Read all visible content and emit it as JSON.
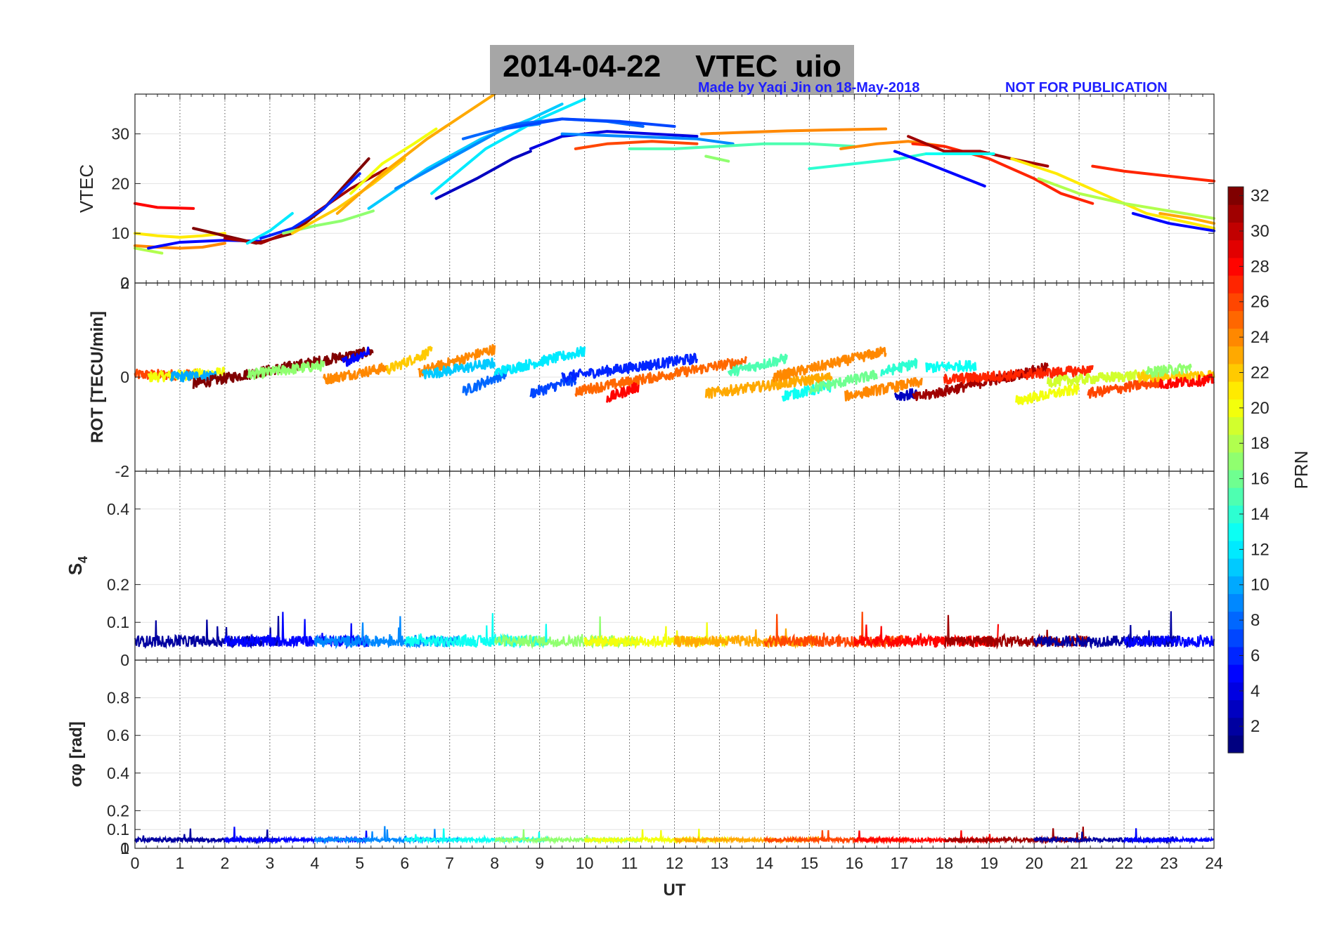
{
  "figure": {
    "title": "2014-04-22    VTEC  uio",
    "credit_left": "Made by Yaqi Jin on 18-May-2018",
    "credit_right": "NOT FOR PUBLICATION",
    "xlabel": "UT",
    "colorbar_label": "PRN"
  },
  "chart_data": {
    "type": "line",
    "x_range": [
      0,
      24
    ],
    "x_ticks": [
      0,
      1,
      2,
      3,
      4,
      5,
      6,
      7,
      8,
      9,
      10,
      11,
      12,
      13,
      14,
      15,
      16,
      17,
      18,
      19,
      20,
      21,
      22,
      23,
      24
    ],
    "xlabel": "UT",
    "colorbar": {
      "label": "PRN",
      "range": [
        1,
        32
      ],
      "ticks": [
        2,
        4,
        6,
        8,
        10,
        12,
        14,
        16,
        18,
        20,
        22,
        24,
        26,
        28,
        30,
        32
      ],
      "colormap": "jet"
    },
    "panels": [
      {
        "name": "vtec",
        "ylabel": "VTEC",
        "ylim": [
          0,
          38
        ],
        "yticks": [
          10,
          20,
          30
        ],
        "extra_tick_labels": [
          "0"
        ],
        "series": [
          {
            "prn": 24,
            "x": [
              0,
              0.5,
              1,
              1.5,
              2
            ],
            "y": [
              7.5,
              7.2,
              7.0,
              7.2,
              8.0
            ]
          },
          {
            "prn": 28,
            "x": [
              0,
              0.5,
              1.3
            ],
            "y": [
              16,
              15.2,
              15
            ]
          },
          {
            "prn": 18,
            "x": [
              0,
              0.6
            ],
            "y": [
              7,
              6
            ]
          },
          {
            "prn": 21,
            "x": [
              0,
              0.5,
              1,
              1.5,
              2
            ],
            "y": [
              10,
              9.5,
              9.2,
              9.5,
              10
            ]
          },
          {
            "prn": 5,
            "x": [
              0.3,
              1,
              2,
              2.8
            ],
            "y": [
              7,
              8.2,
              8.6,
              8.4
            ]
          },
          {
            "prn": 32,
            "x": [
              1.3,
              2,
              2.7,
              3.5,
              4.2,
              5.2
            ],
            "y": [
              11,
              9.5,
              8,
              10,
              15,
              25
            ]
          },
          {
            "prn": 31,
            "x": [
              2,
              2.8,
              3.5,
              4,
              4.8,
              5.6
            ],
            "y": [
              9,
              8,
              10.5,
              14,
              19,
              23
            ]
          },
          {
            "prn": 12,
            "x": [
              2.5,
              3.0,
              3.5
            ],
            "y": [
              8,
              10.5,
              14
            ]
          },
          {
            "prn": 6,
            "x": [
              2.8,
              3.5,
              4.2,
              5.0
            ],
            "y": [
              9,
              11,
              15,
              22
            ]
          },
          {
            "prn": 17,
            "x": [
              3.3,
              4,
              4.6,
              5.3
            ],
            "y": [
              10,
              11.5,
              12.5,
              14.5
            ]
          },
          {
            "prn": 22,
            "x": [
              3.5,
              4.5,
              5.3,
              6.0
            ],
            "y": [
              10,
              15,
              20,
              25
            ]
          },
          {
            "prn": 20,
            "x": [
              4.8,
              5.5,
              6.2,
              6.7
            ],
            "y": [
              18,
              24,
              28,
              31
            ]
          },
          {
            "prn": 23,
            "x": [
              4.5,
              5.5,
              6.5,
              7.5,
              8.0
            ],
            "y": [
              14,
              22,
              29,
              35,
              38
            ]
          },
          {
            "prn": 11,
            "x": [
              5.2,
              6.5,
              7.7,
              8.8,
              9.5
            ],
            "y": [
              15,
              23,
              29,
              33,
              36
            ]
          },
          {
            "prn": 9,
            "x": [
              5.8,
              7,
              8.2,
              9.0
            ],
            "y": [
              19,
              25,
              31,
              32
            ]
          },
          {
            "prn": 12,
            "x": [
              6.6,
              7.8,
              9.0,
              10.0
            ],
            "y": [
              18,
              27,
              33,
              37
            ]
          },
          {
            "prn": 8,
            "x": [
              7.3,
              8.5,
              9.5,
              10.5,
              11.3
            ],
            "y": [
              29,
              32,
              33,
              32.5,
              31.5
            ]
          },
          {
            "prn": 3,
            "x": [
              6.7,
              7.6,
              8.4,
              8.8
            ],
            "y": [
              17,
              21,
              25,
              26.5
            ]
          },
          {
            "prn": 4,
            "x": [
              8.8,
              9.5,
              10.5,
              11.5,
              12.5
            ],
            "y": [
              27,
              29.5,
              30.5,
              30,
              29.5
            ]
          },
          {
            "prn": 7,
            "x": [
              8.2,
              9.5,
              10.8,
              12.0
            ],
            "y": [
              31,
              33,
              32.5,
              31.5
            ]
          },
          {
            "prn": 9,
            "x": [
              9.5,
              11,
              12.5,
              13.3
            ],
            "y": [
              30,
              29.5,
              29,
              28
            ]
          },
          {
            "prn": 26,
            "x": [
              9.8,
              10.5,
              11.5,
              12.5
            ],
            "y": [
              27,
              28,
              28.5,
              28
            ]
          },
          {
            "prn": 15,
            "x": [
              11,
              12,
              13,
              14,
              15,
              16.0
            ],
            "y": [
              27,
              27,
              27.5,
              28,
              28,
              27.5
            ]
          },
          {
            "prn": 24,
            "x": [
              12.6,
              13.5,
              14.5,
              15.5,
              16.7
            ],
            "y": [
              30,
              30.3,
              30.6,
              30.8,
              31
            ]
          },
          {
            "prn": 17,
            "x": [
              12.7,
              13.2
            ],
            "y": [
              25.5,
              24.5
            ]
          },
          {
            "prn": 14,
            "x": [
              15.0,
              16,
              17.0,
              17.6
            ],
            "y": [
              23,
              24,
              25,
              26
            ]
          },
          {
            "prn": 24,
            "x": [
              15.7,
              16.5,
              17.2,
              18.0
            ],
            "y": [
              27,
              28,
              28.5,
              27.5
            ]
          },
          {
            "prn": 5,
            "x": [
              16.9,
              17.5,
              18.2,
              18.9
            ],
            "y": [
              26.5,
              24.5,
              22,
              19.5
            ]
          },
          {
            "prn": 27,
            "x": [
              17.3,
              18,
              19,
              20,
              20.6,
              21.3
            ],
            "y": [
              28,
              27.5,
              25,
              21,
              18,
              16
            ]
          },
          {
            "prn": 31,
            "x": [
              17.2,
              18,
              18.8,
              19.5,
              20.3
            ],
            "y": [
              29.5,
              26.5,
              26.5,
              25,
              23.5
            ]
          },
          {
            "prn": 13,
            "x": [
              17.6,
              18.4,
              19.1
            ],
            "y": [
              26,
              26,
              26
            ]
          },
          {
            "prn": 21,
            "x": [
              19.5,
              20.5,
              21.5,
              22.5,
              24
            ],
            "y": [
              25,
              22,
              18,
              14,
              11
            ]
          },
          {
            "prn": 18,
            "x": [
              20.1,
              21,
              22,
              23,
              24
            ],
            "y": [
              21,
              18,
              16,
              14.5,
              13
            ]
          },
          {
            "prn": 27,
            "x": [
              21.3,
              22,
              23,
              24
            ],
            "y": [
              23.5,
              22.5,
              21.5,
              20.5
            ]
          },
          {
            "prn": 5,
            "x": [
              22.2,
              23,
              24
            ],
            "y": [
              14,
              12,
              10.5
            ]
          },
          {
            "prn": 23,
            "x": [
              22.8,
              23.5,
              24
            ],
            "y": [
              14,
              13,
              12
            ]
          }
        ]
      },
      {
        "name": "rot",
        "ylabel": "ROT [TECU/min]",
        "ylim": [
          -2,
          2
        ],
        "yticks": [
          -2,
          0,
          2
        ],
        "segments": [
          {
            "prn": 26,
            "x": [
              0,
              1.4
            ],
            "y": [
              0.05,
              0.05
            ]
          },
          {
            "prn": 20,
            "x": [
              0.3,
              2.0
            ],
            "y": [
              0.0,
              0.1
            ]
          },
          {
            "prn": 10,
            "x": [
              0.8,
              1.8
            ],
            "y": [
              0.0,
              0.05
            ]
          },
          {
            "prn": 32,
            "x": [
              1.3,
              5.3
            ],
            "y": [
              -0.15,
              0.55
            ]
          },
          {
            "prn": 17,
            "x": [
              2.5,
              4.2
            ],
            "y": [
              0.05,
              0.25
            ]
          },
          {
            "prn": 5,
            "x": [
              4.6,
              5.2
            ],
            "y": [
              0.3,
              0.55
            ]
          },
          {
            "prn": 24,
            "x": [
              4.2,
              5.6
            ],
            "y": [
              -0.05,
              0.2
            ]
          },
          {
            "prn": 22,
            "x": [
              5.6,
              6.6
            ],
            "y": [
              0.15,
              0.55
            ]
          },
          {
            "prn": 24,
            "x": [
              6.3,
              8.0
            ],
            "y": [
              0.1,
              0.6
            ]
          },
          {
            "prn": 11,
            "x": [
              6.4,
              8.0
            ],
            "y": [
              0.05,
              0.3
            ]
          },
          {
            "prn": 8,
            "x": [
              7.3,
              8.3
            ],
            "y": [
              -0.3,
              0.1
            ]
          },
          {
            "prn": 12,
            "x": [
              8.0,
              10.0
            ],
            "y": [
              0.1,
              0.55
            ]
          },
          {
            "prn": 7,
            "x": [
              8.8,
              9.8
            ],
            "y": [
              -0.35,
              -0.05
            ]
          },
          {
            "prn": 6,
            "x": [
              9.5,
              12.5
            ],
            "y": [
              0.0,
              0.4
            ]
          },
          {
            "prn": 25,
            "x": [
              9.8,
              13.6
            ],
            "y": [
              -0.3,
              0.35
            ]
          },
          {
            "prn": 28,
            "x": [
              10.5,
              11.2
            ],
            "y": [
              -0.45,
              -0.2
            ]
          },
          {
            "prn": 15,
            "x": [
              13.2,
              14.5
            ],
            "y": [
              0.1,
              0.4
            ]
          },
          {
            "prn": 23,
            "x": [
              12.7,
              15.5
            ],
            "y": [
              -0.35,
              0.0
            ]
          },
          {
            "prn": 13,
            "x": [
              14.4,
              15.5
            ],
            "y": [
              -0.4,
              -0.2
            ]
          },
          {
            "prn": 24,
            "x": [
              14.2,
              16.7
            ],
            "y": [
              0.0,
              0.55
            ]
          },
          {
            "prn": 16,
            "x": [
              15.0,
              16.5
            ],
            "y": [
              -0.25,
              0.05
            ]
          },
          {
            "prn": 14,
            "x": [
              16.6,
              17.4
            ],
            "y": [
              0.1,
              0.3
            ]
          },
          {
            "prn": 24,
            "x": [
              15.8,
              17.5
            ],
            "y": [
              -0.4,
              -0.1
            ]
          },
          {
            "prn": 13,
            "x": [
              17.6,
              18.7
            ],
            "y": [
              0.2,
              0.25
            ]
          },
          {
            "prn": 3,
            "x": [
              16.9,
              17.4
            ],
            "y": [
              -0.4,
              -0.35
            ]
          },
          {
            "prn": 31,
            "x": [
              17.3,
              20.3
            ],
            "y": [
              -0.45,
              0.2
            ]
          },
          {
            "prn": 27,
            "x": [
              18.0,
              21.3
            ],
            "y": [
              -0.05,
              0.15
            ]
          },
          {
            "prn": 20,
            "x": [
              19.6,
              21.0
            ],
            "y": [
              -0.5,
              -0.25
            ]
          },
          {
            "prn": 19,
            "x": [
              20.3,
              22.5
            ],
            "y": [
              -0.1,
              0.05
            ]
          },
          {
            "prn": 26,
            "x": [
              21.2,
              22.8
            ],
            "y": [
              -0.35,
              -0.1
            ]
          },
          {
            "prn": 22,
            "x": [
              22.3,
              24.0
            ],
            "y": [
              0.0,
              0.05
            ]
          },
          {
            "prn": 28,
            "x": [
              22.8,
              24.0
            ],
            "y": [
              -0.15,
              -0.05
            ]
          },
          {
            "prn": 17,
            "x": [
              22.5,
              23.5
            ],
            "y": [
              0.1,
              0.2
            ]
          }
        ]
      },
      {
        "name": "s4",
        "ylabel": "S4",
        "ylim": [
          0,
          0.5
        ],
        "yticks": [
          0.1,
          0.2,
          0.4
        ],
        "extra_tick_labels": [
          "0"
        ],
        "noise_band": {
          "y_center": 0.05,
          "y_spread": 0.03,
          "peak": 0.13
        }
      },
      {
        "name": "sigma_phi",
        "ylabel": "σφ [rad]",
        "ylim": [
          0,
          1
        ],
        "yticks": [
          0,
          0.1,
          0.2,
          0.4,
          0.6,
          0.8
        ],
        "extra_tick_labels": [
          "1"
        ],
        "noise_band": {
          "y_center": 0.045,
          "y_spread": 0.02,
          "peak": 0.12
        }
      }
    ]
  }
}
